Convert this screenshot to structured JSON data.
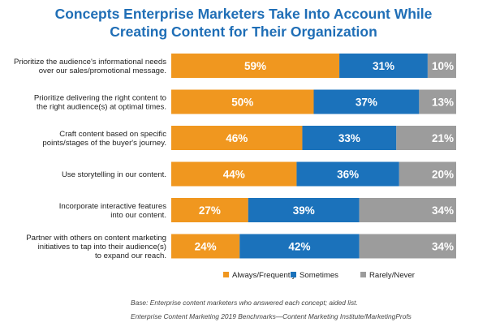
{
  "title_lines": [
    "Concepts Enterprise Marketers Take Into Account While",
    "Creating Content for Their Organization"
  ],
  "chart_data": {
    "type": "bar",
    "orientation": "horizontal",
    "stacked": true,
    "title": "Concepts Enterprise Marketers Take Into Account While Creating Content for Their Organization",
    "categories": [
      [
        "Prioritize the audience's informational needs",
        "over our sales/promotional message."
      ],
      [
        "Prioritize delivering the right content to",
        "the right audience(s) at optimal times."
      ],
      [
        "Craft content based on specific",
        "points/stages of the buyer's journey."
      ],
      [
        "Use storytelling in our content."
      ],
      [
        "Incorporate interactive features",
        "into our content."
      ],
      [
        "Partner with others on content marketing",
        "initiatives to tap into their audience(s)",
        "to expand our reach."
      ]
    ],
    "series": [
      {
        "name": "Always/Frequently",
        "color": "#f0971f",
        "values": [
          59,
          50,
          46,
          44,
          27,
          24
        ],
        "labels": [
          "59%",
          "50%",
          "46%",
          "44%",
          "27%",
          "24%"
        ]
      },
      {
        "name": "Sometimes",
        "color": "#1b72bb",
        "values": [
          31,
          37,
          33,
          36,
          39,
          42
        ],
        "labels": [
          "31%",
          "37%",
          "33%",
          "36%",
          "39%",
          "42%"
        ]
      },
      {
        "name": "Rarely/Never",
        "color": "#9c9c9c",
        "values": [
          10,
          13,
          21,
          20,
          34,
          34
        ],
        "labels": [
          "10%",
          "13%",
          "21%",
          "20%",
          "34%",
          "34%"
        ]
      }
    ],
    "xlim": [
      0,
      100
    ],
    "legend_position": "bottom",
    "grid": false
  },
  "footnotes": {
    "base": "Base: Enterprise content marketers who answered each concept; aided list.",
    "source": "Enterprise Content Marketing 2019 Benchmarks—Content Marketing Institute/MarketingProfs"
  }
}
